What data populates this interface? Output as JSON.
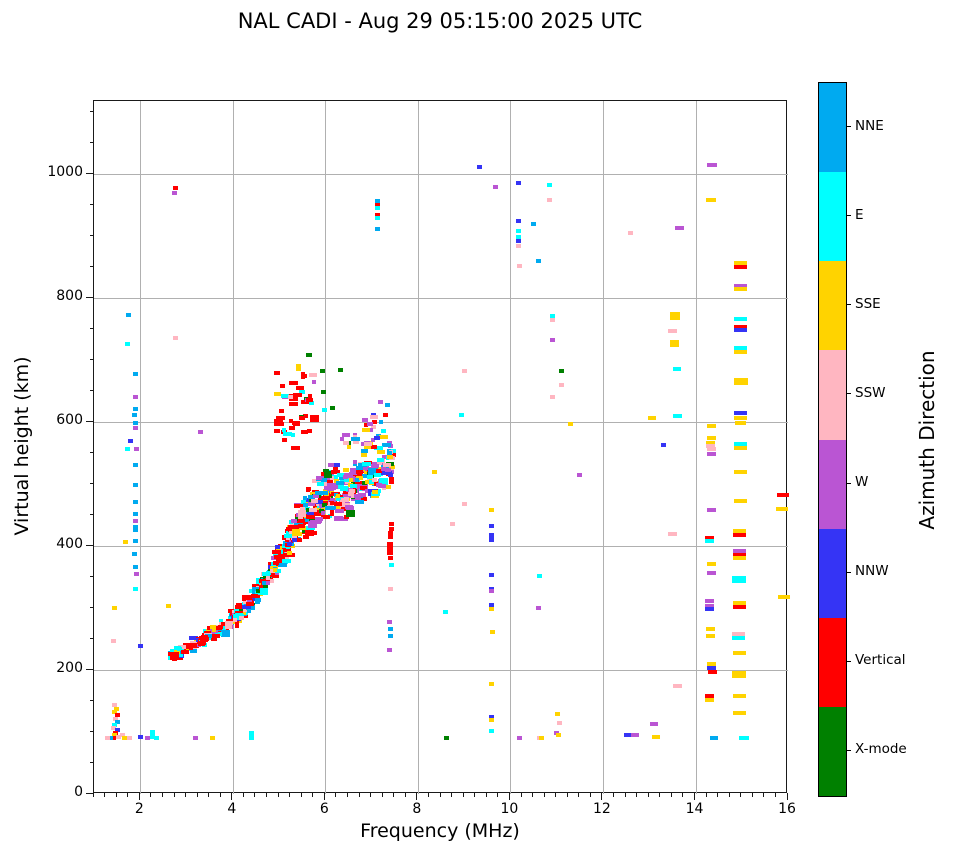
{
  "chart_data": {
    "type": "scatter",
    "title": "NAL CADI - Aug 29 05:15:00 2025 UTC",
    "xlabel": "Frequency (MHz)",
    "ylabel": "Virtual height (km)",
    "colorbar_label": "Azimuth Direction",
    "xlim": [
      1,
      16
    ],
    "ylim": [
      0,
      1118
    ],
    "xticks": [
      2,
      4,
      6,
      8,
      10,
      12,
      14,
      16
    ],
    "yticks": [
      0,
      200,
      400,
      600,
      800,
      1000
    ],
    "x_minor_step": 0.25,
    "y_minor_step": 50,
    "grid": true,
    "legend_position": "right-colorbar",
    "categories": [
      {
        "name": "NNE",
        "color": "#00aaf0"
      },
      {
        "name": "E",
        "color": "#00ffff"
      },
      {
        "name": "SSE",
        "color": "#ffd300"
      },
      {
        "name": "SSW",
        "color": "#ffb6c1"
      },
      {
        "name": "W",
        "color": "#ba55d3"
      },
      {
        "name": "NNW",
        "color": "#3534f5"
      },
      {
        "name": "Vertical",
        "color": "#ff0000"
      },
      {
        "name": "X-mode",
        "color": "#008000"
      }
    ],
    "seed": 42,
    "points": [
      [
        1.45,
        143,
        3
      ],
      [
        1.48,
        138,
        2
      ],
      [
        1.44,
        132,
        2
      ],
      [
        1.5,
        127,
        6
      ],
      [
        1.46,
        121,
        3
      ],
      [
        1.5,
        116,
        0
      ],
      [
        1.44,
        112,
        1
      ],
      [
        1.42,
        107,
        3
      ],
      [
        1.5,
        104,
        5
      ],
      [
        1.46,
        99,
        6
      ],
      [
        1.44,
        95,
        2
      ],
      [
        1.52,
        92,
        3
      ],
      [
        1.42,
        90,
        6
      ],
      [
        1.62,
        95,
        3
      ],
      [
        1.66,
        90,
        2
      ],
      [
        1.36,
        90,
        0
      ],
      [
        1.3,
        90,
        3
      ],
      [
        1.76,
        90,
        3
      ],
      [
        1.45,
        300,
        2
      ],
      [
        1.43,
        247,
        3
      ],
      [
        1.67,
        406,
        2
      ],
      [
        1.75,
        773,
        0
      ],
      [
        1.73,
        726,
        1
      ],
      [
        1.9,
        678,
        0
      ],
      [
        1.9,
        640,
        4
      ],
      [
        1.9,
        621,
        0
      ],
      [
        1.88,
        611,
        0
      ],
      [
        1.9,
        599,
        0
      ],
      [
        1.9,
        590,
        4
      ],
      [
        1.78,
        570,
        5
      ],
      [
        1.72,
        557,
        1
      ],
      [
        1.92,
        556,
        4
      ],
      [
        1.9,
        531,
        0
      ],
      [
        1.9,
        498,
        0
      ],
      [
        1.9,
        471,
        0
      ],
      [
        1.9,
        452,
        0
      ],
      [
        1.9,
        441,
        4
      ],
      [
        1.9,
        429,
        0,
        5,
        7
      ],
      [
        1.9,
        409,
        0
      ],
      [
        1.88,
        387,
        0
      ],
      [
        1.9,
        366,
        0
      ],
      [
        1.92,
        355,
        4
      ],
      [
        1.9,
        330,
        1
      ],
      [
        2.0,
        92,
        5
      ],
      [
        2.0,
        239,
        5
      ],
      [
        2.15,
        90,
        4
      ],
      [
        2.27,
        96,
        1,
        5,
        9
      ],
      [
        2.35,
        90,
        1
      ],
      [
        2.6,
        303,
        2
      ],
      [
        2.75,
        977,
        6
      ],
      [
        2.74,
        970,
        4
      ],
      [
        2.77,
        735,
        3
      ],
      [
        3.3,
        584,
        4
      ],
      [
        3.2,
        90,
        4
      ],
      [
        3.55,
        90,
        2
      ],
      [
        4.4,
        95,
        1,
        5,
        9
      ],
      [
        5.93,
        682,
        7
      ],
      [
        5.95,
        648,
        7
      ],
      [
        6.15,
        623,
        7
      ],
      [
        6.32,
        684,
        7
      ],
      [
        5.98,
        619,
        1
      ],
      [
        7.12,
        957,
        0
      ],
      [
        7.12,
        951,
        6
      ],
      [
        7.12,
        945,
        1
      ],
      [
        7.12,
        934,
        6
      ],
      [
        7.12,
        929,
        1
      ],
      [
        7.12,
        911,
        0
      ],
      [
        7.2,
        632,
        4
      ],
      [
        7.35,
        628,
        0
      ],
      [
        7.3,
        612,
        6
      ],
      [
        7.05,
        611,
        5
      ],
      [
        7.25,
        586,
        1
      ],
      [
        7.42,
        436,
        6
      ],
      [
        7.42,
        428,
        6
      ],
      [
        7.4,
        418,
        6,
        5,
        8
      ],
      [
        7.4,
        396,
        6,
        6,
        13
      ],
      [
        7.4,
        381,
        6
      ],
      [
        7.42,
        370,
        1
      ],
      [
        7.4,
        331,
        3
      ],
      [
        7.38,
        278,
        4
      ],
      [
        7.4,
        266,
        0
      ],
      [
        7.4,
        255,
        0
      ],
      [
        7.38,
        232,
        4
      ],
      [
        8.35,
        520,
        2
      ],
      [
        8.6,
        293,
        1
      ],
      [
        8.62,
        90,
        7
      ],
      [
        8.95,
        612,
        1
      ],
      [
        9.0,
        683,
        3
      ],
      [
        9.0,
        468,
        3
      ],
      [
        8.75,
        435,
        3
      ],
      [
        9.33,
        1011,
        5
      ],
      [
        9.68,
        979,
        4
      ],
      [
        9.6,
        459,
        2
      ],
      [
        9.6,
        432,
        5
      ],
      [
        9.6,
        414,
        5,
        5,
        9
      ],
      [
        9.6,
        353,
        5
      ],
      [
        9.6,
        331,
        5
      ],
      [
        9.6,
        327,
        4
      ],
      [
        9.6,
        305,
        5
      ],
      [
        9.6,
        299,
        2
      ],
      [
        9.62,
        261,
        2
      ],
      [
        9.6,
        177,
        2
      ],
      [
        9.6,
        124,
        5
      ],
      [
        9.6,
        119,
        2
      ],
      [
        9.58,
        101,
        1
      ],
      [
        10.18,
        986,
        5
      ],
      [
        10.18,
        925,
        5
      ],
      [
        10.18,
        908,
        1
      ],
      [
        10.18,
        898,
        1
      ],
      [
        10.18,
        893,
        5
      ],
      [
        10.18,
        884,
        3
      ],
      [
        10.2,
        852,
        3
      ],
      [
        10.2,
        90,
        4
      ],
      [
        10.5,
        919,
        0
      ],
      [
        10.6,
        860,
        0
      ],
      [
        10.62,
        352,
        1
      ],
      [
        10.6,
        300,
        4
      ],
      [
        10.62,
        90,
        3
      ],
      [
        10.68,
        90,
        2
      ],
      [
        10.85,
        983,
        1
      ],
      [
        10.85,
        958,
        3
      ],
      [
        10.9,
        771,
        1
      ],
      [
        10.9,
        765,
        3
      ],
      [
        10.9,
        733,
        4
      ],
      [
        11.1,
        682,
        7
      ],
      [
        11.1,
        660,
        3
      ],
      [
        10.9,
        640,
        3
      ],
      [
        11.3,
        597,
        2
      ],
      [
        11.02,
        129,
        2
      ],
      [
        11.06,
        114,
        3
      ],
      [
        11.0,
        99,
        4
      ],
      [
        11.04,
        95,
        2
      ],
      [
        11.5,
        515,
        4
      ],
      [
        12.6,
        905,
        3
      ],
      [
        12.55,
        95,
        5,
        8
      ],
      [
        12.7,
        95,
        4,
        8
      ],
      [
        13.1,
        113,
        4,
        8
      ],
      [
        13.15,
        92,
        2,
        8
      ],
      [
        13.05,
        606,
        2,
        8
      ],
      [
        13.3,
        563,
        5
      ],
      [
        13.65,
        913,
        4,
        9
      ],
      [
        13.55,
        775,
        2,
        10
      ],
      [
        13.55,
        768,
        2,
        10
      ],
      [
        13.5,
        747,
        3,
        9
      ],
      [
        13.55,
        730,
        2,
        9
      ],
      [
        13.55,
        724,
        2,
        9
      ],
      [
        13.6,
        685,
        1,
        8
      ],
      [
        13.62,
        610,
        1,
        9
      ],
      [
        13.5,
        419,
        3,
        9
      ],
      [
        13.6,
        174,
        3,
        9
      ],
      [
        14.35,
        1015,
        4,
        10
      ],
      [
        14.33,
        958,
        2,
        10
      ],
      [
        14.35,
        593,
        2,
        9
      ],
      [
        14.35,
        575,
        2,
        9
      ],
      [
        14.33,
        566,
        2,
        9
      ],
      [
        14.33,
        561,
        3,
        9
      ],
      [
        14.35,
        556,
        3,
        9
      ],
      [
        14.35,
        548,
        4,
        9
      ],
      [
        14.35,
        458,
        4,
        9
      ],
      [
        14.3,
        413,
        6,
        9
      ],
      [
        14.3,
        408,
        1,
        9
      ],
      [
        14.35,
        371,
        2,
        9
      ],
      [
        14.35,
        356,
        4,
        9
      ],
      [
        14.3,
        311,
        4,
        9
      ],
      [
        14.3,
        304,
        4,
        9
      ],
      [
        14.3,
        298,
        5,
        9
      ],
      [
        14.33,
        266,
        2,
        9
      ],
      [
        14.33,
        255,
        2,
        9
      ],
      [
        14.35,
        210,
        2,
        9
      ],
      [
        14.35,
        204,
        5,
        9
      ],
      [
        14.37,
        197,
        6,
        9
      ],
      [
        14.3,
        158,
        6,
        9
      ],
      [
        14.3,
        152,
        2,
        9
      ],
      [
        14.4,
        90,
        0,
        8
      ],
      [
        14.97,
        857,
        2,
        13
      ],
      [
        14.97,
        851,
        6,
        13
      ],
      [
        14.97,
        820,
        4,
        13
      ],
      [
        14.97,
        814,
        2,
        13
      ],
      [
        14.97,
        766,
        1,
        13
      ],
      [
        14.97,
        753,
        6,
        13
      ],
      [
        14.97,
        748,
        5,
        13
      ],
      [
        14.97,
        719,
        1,
        13
      ],
      [
        14.97,
        713,
        2,
        13
      ],
      [
        14.99,
        665,
        2,
        14,
        7
      ],
      [
        14.97,
        614,
        5,
        13
      ],
      [
        14.97,
        607,
        2,
        13
      ],
      [
        14.98,
        598,
        2,
        11
      ],
      [
        14.97,
        565,
        1,
        13
      ],
      [
        14.97,
        559,
        2,
        13
      ],
      [
        14.97,
        520,
        2,
        13
      ],
      [
        14.97,
        472,
        2,
        13
      ],
      [
        14.95,
        424,
        2,
        13
      ],
      [
        14.95,
        418,
        6,
        13
      ],
      [
        14.95,
        392,
        4,
        13
      ],
      [
        14.95,
        386,
        6,
        13
      ],
      [
        14.95,
        381,
        2,
        13
      ],
      [
        14.95,
        346,
        1,
        14,
        7
      ],
      [
        14.95,
        308,
        2,
        13
      ],
      [
        14.95,
        302,
        6,
        13
      ],
      [
        14.93,
        258,
        3,
        13
      ],
      [
        14.93,
        252,
        1,
        13
      ],
      [
        14.95,
        227,
        2,
        13
      ],
      [
        14.95,
        193,
        2,
        14,
        7
      ],
      [
        14.95,
        158,
        2,
        13
      ],
      [
        14.95,
        130,
        2,
        13
      ],
      [
        15.05,
        90,
        1,
        10
      ],
      [
        15.9,
        483,
        6,
        12
      ],
      [
        15.88,
        460,
        2,
        12
      ],
      [
        15.92,
        318,
        2,
        12
      ]
    ],
    "trace_segments": [
      {
        "f0": 2.68,
        "f1": 3.3,
        "h0": 222,
        "h1": 248,
        "s0": 9,
        "s1": 13,
        "n": 60,
        "w": [
          0.2,
          0.18,
          0.09,
          0.09,
          0.06,
          0.04,
          0.31,
          0.03
        ]
      },
      {
        "f0": 3.3,
        "f1": 4.0,
        "h0": 248,
        "h1": 280,
        "s0": 12,
        "s1": 16,
        "n": 72,
        "w": [
          0.2,
          0.18,
          0.09,
          0.09,
          0.06,
          0.04,
          0.31,
          0.03
        ]
      },
      {
        "f0": 4.0,
        "f1": 4.6,
        "h0": 280,
        "h1": 330,
        "s0": 14,
        "s1": 20,
        "n": 85,
        "w": [
          0.18,
          0.16,
          0.1,
          0.09,
          0.06,
          0.04,
          0.34,
          0.03
        ]
      },
      {
        "f0": 4.6,
        "f1": 5.15,
        "h0": 330,
        "h1": 400,
        "s0": 18,
        "s1": 30,
        "n": 95,
        "w": [
          0.15,
          0.14,
          0.09,
          0.09,
          0.07,
          0.04,
          0.39,
          0.03
        ]
      },
      {
        "f0": 5.15,
        "f1": 5.65,
        "h0": 400,
        "h1": 462,
        "s0": 28,
        "s1": 46,
        "n": 100,
        "w": [
          0.12,
          0.12,
          0.08,
          0.09,
          0.08,
          0.04,
          0.44,
          0.03
        ]
      },
      {
        "f0": 5.65,
        "f1": 6.25,
        "h0": 448,
        "h1": 505,
        "s0": 42,
        "s1": 55,
        "n": 120,
        "w": [
          0.12,
          0.13,
          0.1,
          0.12,
          0.19,
          0.05,
          0.21,
          0.08
        ]
      },
      {
        "f0": 6.25,
        "f1": 6.95,
        "h0": 472,
        "h1": 520,
        "s0": 46,
        "s1": 50,
        "n": 115,
        "w": [
          0.12,
          0.14,
          0.1,
          0.13,
          0.24,
          0.05,
          0.14,
          0.08
        ]
      },
      {
        "f0": 6.95,
        "f1": 7.45,
        "h0": 492,
        "h1": 535,
        "s0": 40,
        "s1": 42,
        "n": 70,
        "w": [
          0.12,
          0.14,
          0.11,
          0.12,
          0.22,
          0.07,
          0.16,
          0.06
        ]
      },
      {
        "f0": 4.95,
        "f1": 5.78,
        "h0": 612,
        "h1": 640,
        "s0": 70,
        "s1": 88,
        "n": 46,
        "w": [
          0.02,
          0.05,
          0.02,
          0.04,
          0.03,
          0.02,
          0.78,
          0.04
        ]
      },
      {
        "f0": 6.25,
        "f1": 7.4,
        "h0": 560,
        "h1": 595,
        "s0": 30,
        "s1": 36,
        "n": 30,
        "w": [
          0.1,
          0.12,
          0.12,
          0.1,
          0.26,
          0.08,
          0.14,
          0.08
        ]
      }
    ]
  }
}
